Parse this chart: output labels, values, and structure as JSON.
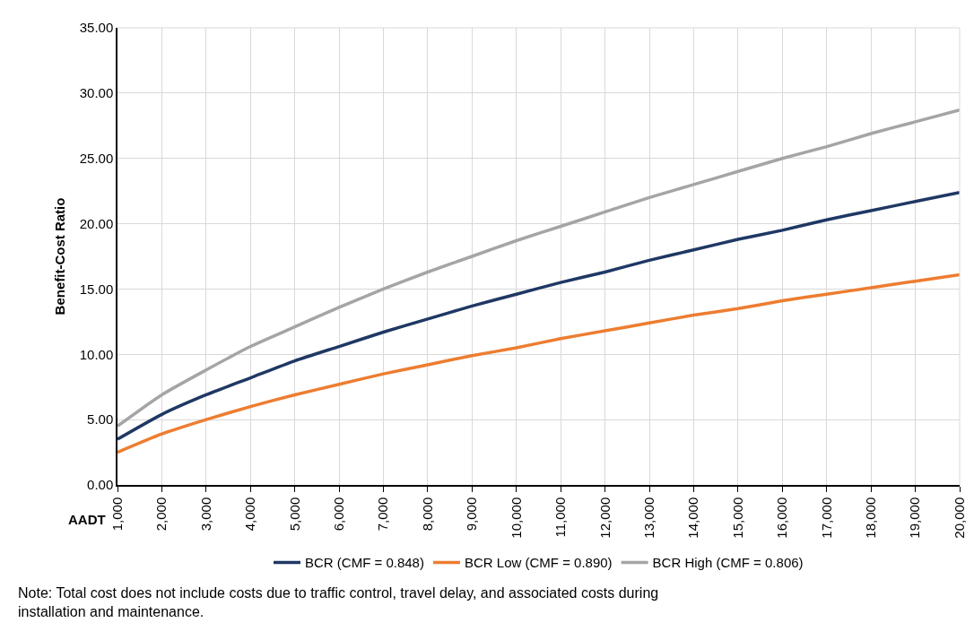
{
  "chart_data": {
    "type": "line",
    "xlabel": "AADT",
    "ylabel": "Benefit-Cost Ratio",
    "x": [
      1000,
      2000,
      3000,
      4000,
      5000,
      6000,
      7000,
      8000,
      9000,
      10000,
      11000,
      12000,
      13000,
      14000,
      15000,
      16000,
      17000,
      18000,
      19000,
      20000
    ],
    "series": [
      {
        "name": "BCR (CMF = 0.848)",
        "color": "#1f3864",
        "values": [
          3.5,
          5.4,
          6.9,
          8.2,
          9.5,
          10.6,
          11.7,
          12.7,
          13.7,
          14.6,
          15.5,
          16.3,
          17.2,
          18.0,
          18.8,
          19.5,
          20.3,
          21.0,
          21.7,
          22.4
        ]
      },
      {
        "name": "BCR Low (CMF = 0.890)",
        "color": "#ed7d31",
        "values": [
          2.5,
          3.9,
          5.0,
          6.0,
          6.9,
          7.7,
          8.5,
          9.2,
          9.9,
          10.5,
          11.2,
          11.8,
          12.4,
          13.0,
          13.5,
          14.1,
          14.6,
          15.1,
          15.6,
          16.1
        ]
      },
      {
        "name": "BCR High (CMF = 0.806)",
        "color": "#a5a5a5",
        "values": [
          4.5,
          6.9,
          8.8,
          10.6,
          12.1,
          13.6,
          15.0,
          16.3,
          17.5,
          18.7,
          19.8,
          20.9,
          22.0,
          23.0,
          24.0,
          25.0,
          25.9,
          26.9,
          27.8,
          28.7
        ]
      }
    ],
    "xlim": [
      1000,
      20000
    ],
    "xticks": [
      {
        "value": 1000,
        "label": "1,000"
      },
      {
        "value": 2000,
        "label": "2,000"
      },
      {
        "value": 3000,
        "label": "3,000"
      },
      {
        "value": 4000,
        "label": "4,000"
      },
      {
        "value": 5000,
        "label": "5,000"
      },
      {
        "value": 6000,
        "label": "6,000"
      },
      {
        "value": 7000,
        "label": "7,000"
      },
      {
        "value": 8000,
        "label": "8,000"
      },
      {
        "value": 9000,
        "label": "9,000"
      },
      {
        "value": 10000,
        "label": "10,000"
      },
      {
        "value": 11000,
        "label": "11,000"
      },
      {
        "value": 12000,
        "label": "12,000"
      },
      {
        "value": 13000,
        "label": "13,000"
      },
      {
        "value": 14000,
        "label": "14,000"
      },
      {
        "value": 15000,
        "label": "15,000"
      },
      {
        "value": 16000,
        "label": "16,000"
      },
      {
        "value": 17000,
        "label": "17,000"
      },
      {
        "value": 18000,
        "label": "18,000"
      },
      {
        "value": 19000,
        "label": "19,000"
      },
      {
        "value": 20000,
        "label": "20,000"
      }
    ],
    "ylim": [
      0,
      35
    ],
    "yticks": [
      {
        "value": 0,
        "label": "0.00"
      },
      {
        "value": 5,
        "label": "5.00"
      },
      {
        "value": 10,
        "label": "10.00"
      },
      {
        "value": 15,
        "label": "15.00"
      },
      {
        "value": 20,
        "label": "20.00"
      },
      {
        "value": 25,
        "label": "25.00"
      },
      {
        "value": 30,
        "label": "30.00"
      },
      {
        "value": 35,
        "label": "35.00"
      }
    ],
    "grid": true,
    "legend": "bottom",
    "marker": "none",
    "line_style": "solid",
    "annotations": [
      "Note: Total cost does not include costs due to traffic control, travel delay, and associated costs during installation and maintenance."
    ]
  }
}
